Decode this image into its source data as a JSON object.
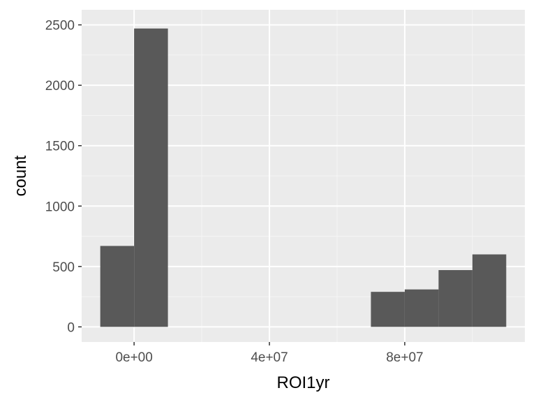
{
  "chart_data": {
    "type": "bar",
    "subtype": "histogram",
    "title": "",
    "xlabel": "ROI1yr",
    "ylabel": "count",
    "bins": [
      {
        "x0": -10000000,
        "x1": 0,
        "count": 670
      },
      {
        "x0": 0,
        "x1": 10000000,
        "count": 2470
      },
      {
        "x0": 10000000,
        "x1": 20000000,
        "count": 0
      },
      {
        "x0": 20000000,
        "x1": 30000000,
        "count": 0
      },
      {
        "x0": 30000000,
        "x1": 40000000,
        "count": 0
      },
      {
        "x0": 40000000,
        "x1": 50000000,
        "count": 0
      },
      {
        "x0": 50000000,
        "x1": 60000000,
        "count": 0
      },
      {
        "x0": 60000000,
        "x1": 70000000,
        "count": 0
      },
      {
        "x0": 70000000,
        "x1": 80000000,
        "count": 290
      },
      {
        "x0": 80000000,
        "x1": 90000000,
        "count": 310
      },
      {
        "x0": 90000000,
        "x1": 100000000,
        "count": 470
      },
      {
        "x0": 100000000,
        "x1": 110000000,
        "count": 600
      }
    ],
    "xlim": [
      -15500000,
      115500000
    ],
    "ylim": [
      -125,
      2625
    ],
    "x_ticks": [
      {
        "value": 0,
        "label": "0e+00"
      },
      {
        "value": 40000000,
        "label": "4e+07"
      },
      {
        "value": 80000000,
        "label": "8e+07"
      }
    ],
    "x_minor_ticks": [
      20000000,
      60000000,
      100000000
    ],
    "y_ticks": [
      {
        "value": 0,
        "label": "0"
      },
      {
        "value": 500,
        "label": "500"
      },
      {
        "value": 1000,
        "label": "1000"
      },
      {
        "value": 1500,
        "label": "1500"
      },
      {
        "value": 2000,
        "label": "2000"
      },
      {
        "value": 2500,
        "label": "2500"
      }
    ],
    "y_minor_ticks": [
      250,
      750,
      1250,
      1750,
      2250
    ],
    "grid": true,
    "legend": "none",
    "colors": {
      "panel_background": "#ebebeb",
      "grid_major": "#ffffff",
      "grid_minor": "#f5f5f5",
      "bar_fill": "#595959",
      "tick_label": "#4d4d4d",
      "tick_mark": "#333333",
      "axis_title": "#000000"
    }
  }
}
